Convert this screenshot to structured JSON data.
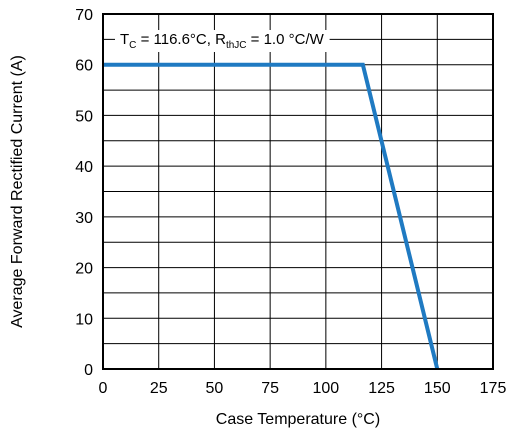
{
  "chart_data": {
    "type": "line",
    "xlabel": "Case Temperature (°C)",
    "ylabel": "Average Forward Rectified Current (A)",
    "xlim": [
      0,
      175
    ],
    "ylim": [
      0,
      70
    ],
    "xticks": [
      0,
      25,
      50,
      75,
      100,
      125,
      150,
      175
    ],
    "yticks": [
      0,
      10,
      20,
      30,
      40,
      50,
      60,
      70
    ],
    "grid": true,
    "series": [
      {
        "x": [
          0,
          116.6,
          150
        ],
        "y": [
          60,
          60,
          0
        ],
        "color": "#1f7ac2"
      }
    ],
    "annotation": {
      "t_symbol": "T",
      "t_sub": "C",
      "t_value": " = 116.6°C, R",
      "r_sub": "thJC",
      "r_value": " = 1.0 °C/W"
    }
  }
}
